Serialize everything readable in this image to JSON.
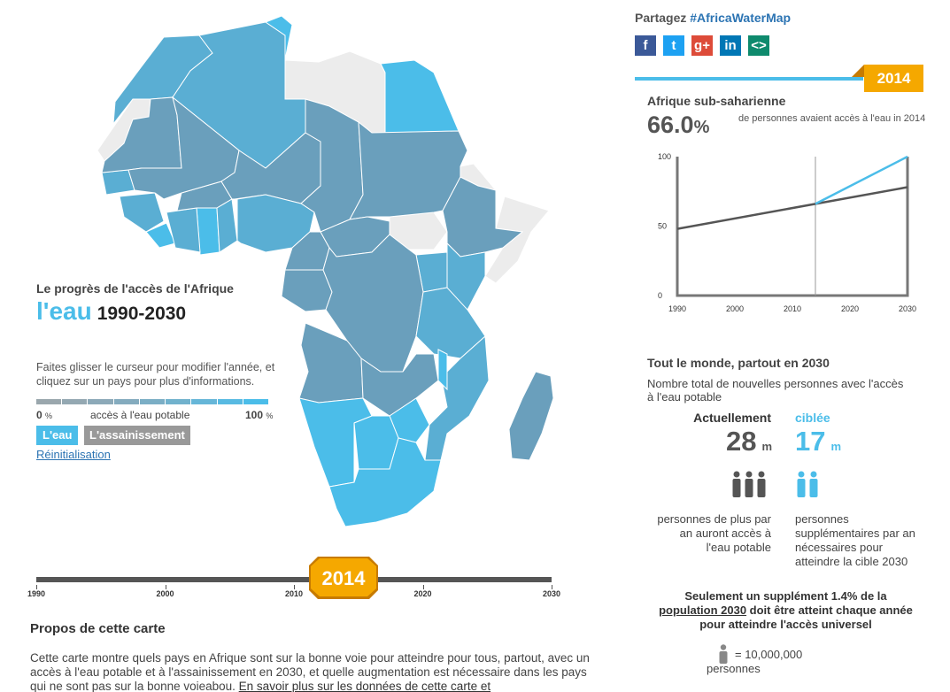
{
  "colors": {
    "water_accent": "#4bbde9",
    "country_dark": "#6a9fbc",
    "country_mid": "#5aaed3",
    "country_light": "#4bbde9",
    "no_data": "#ececec",
    "badge": "#f5a800",
    "badge_shadow": "#c77b00"
  },
  "left_panel": {
    "subtitle": "Le progrès de l'accès de l'Afrique",
    "headline_big": "l'eau",
    "headline_years": "1990-2030",
    "instructions": "Faites glisser le curseur pour modifier l'année, et cliquez sur un pays pour plus d'informations.",
    "legend_min": "0",
    "legend_min_unit": "%",
    "legend_label": "accès à l'eau potable",
    "legend_max": "100",
    "legend_max_unit": "%",
    "legend_colors": [
      "#9aa7ad",
      "#94a8b2",
      "#8ca9b8",
      "#84abbe",
      "#7baec5",
      "#71b2cd",
      "#66b6d8",
      "#58bae2",
      "#4bbde9"
    ],
    "btn_water": "L'eau",
    "btn_sanitation": "L'assainissement",
    "reset_link": "Réinitialisation"
  },
  "timeline": {
    "current_year": "2014",
    "ticks": [
      "1990",
      "2000",
      "2010",
      "2020",
      "2030"
    ]
  },
  "about": {
    "title": "Propos de cette carte",
    "text": "Cette carte montre quels pays en Afrique sont sur la bonne voie pour atteindre pour tous, partout, avec un accès à l'eau potable et à l'assainissement en 2030, et quelle augmentation est nécessaire dans les pays qui ne sont pas sur la bonne voieabou. ",
    "link": "En savoir plus sur les données de cette carte et"
  },
  "share": {
    "label": "Partagez",
    "hashtag": "#AfricaWaterMap",
    "icons": [
      {
        "name": "facebook-icon",
        "glyph": "f",
        "color": "#3b5998"
      },
      {
        "name": "twitter-icon",
        "glyph": "t",
        "color": "#1da1f2"
      },
      {
        "name": "google-plus-icon",
        "glyph": "g+",
        "color": "#dd4b39"
      },
      {
        "name": "linkedin-icon",
        "glyph": "in",
        "color": "#0077b5"
      },
      {
        "name": "embed-icon",
        "glyph": "<>",
        "color": "#0e8a6d"
      }
    ]
  },
  "year_badge": "2014",
  "region": {
    "title": "Afrique sub-saharienne",
    "value": "66.0",
    "unit": "%",
    "description": "de personnes avaient accès à l'eau in 2014"
  },
  "chart_data": {
    "type": "line",
    "title": "",
    "x_ticks": [
      "1990",
      "2000",
      "2010",
      "2020",
      "2030"
    ],
    "y_ticks": [
      "0",
      "50",
      "100"
    ],
    "xlim": [
      1990,
      2030
    ],
    "ylim": [
      0,
      100
    ],
    "marker_x": 2014,
    "series": [
      {
        "color": "#555555",
        "points": [
          [
            1990,
            48
          ],
          [
            2014,
            66
          ],
          [
            2030,
            78
          ]
        ]
      },
      {
        "color": "#4bbde9",
        "points": [
          [
            2014,
            66
          ],
          [
            2030,
            100
          ]
        ]
      }
    ]
  },
  "world": {
    "title": "Tout le monde, partout en 2030",
    "description": "Nombre total de nouvelles personnes avec l'accès à l'eau potable",
    "current_label": "Actuellement",
    "current_value": "28",
    "current_unit": "m",
    "current_text": "personnes de plus par an auront accès à l'eau potable",
    "target_label": "ciblée",
    "target_value": "17",
    "target_unit": "m",
    "target_text": "personnes supplémentaires par an nécessaires pour atteindre la cible 2030",
    "supplement_pre": "Seulement un supplément 1.4% de la ",
    "supplement_link": "population 2030",
    "supplement_post": " doit être atteint chaque année pour atteindre l'accès universel",
    "scale_value": "= 10,000,000",
    "scale_unit": "personnes"
  }
}
